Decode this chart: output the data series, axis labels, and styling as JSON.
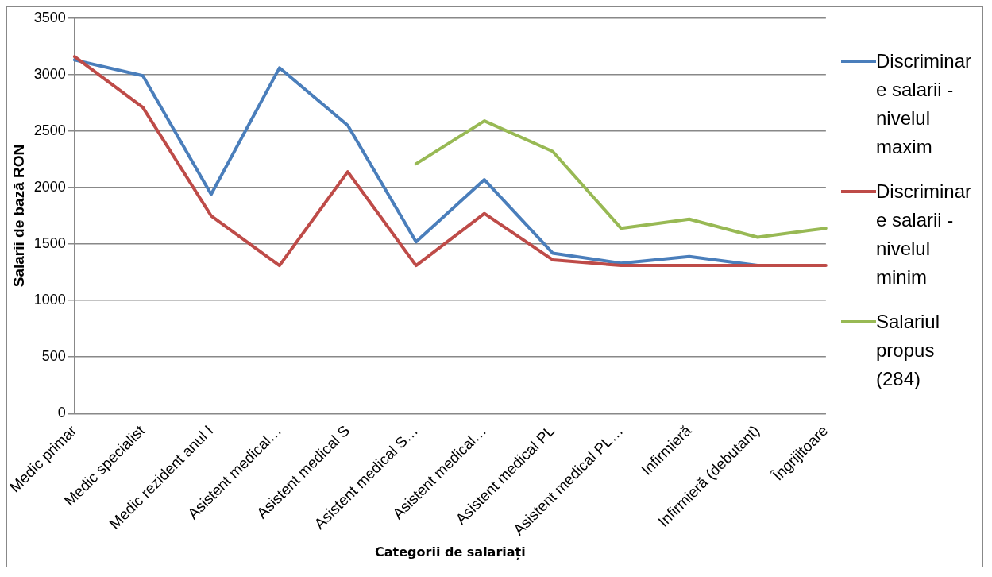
{
  "chart_data": {
    "type": "line",
    "xlabel": "Categorii de salariați",
    "ylabel": "Salarii de bază RON",
    "categories": [
      "Medic primar",
      "Medic specialist",
      "Medic rezident anul I",
      "Asistent medical…",
      "Asistent medical S",
      "Asistent medical S…",
      "Asistent medical…",
      "Asistent medical PL",
      "Asistent medical PL…",
      "Infirmieră",
      "Infirmieră (debutant)",
      "Îngrijitoare"
    ],
    "series": [
      {
        "name": "Discriminare salarii - nivelul maxim",
        "color": "#4a7ebb",
        "values": [
          3130,
          2990,
          1940,
          3060,
          2550,
          1520,
          2070,
          1420,
          1330,
          1390,
          1310,
          null
        ]
      },
      {
        "name": "Discriminare salarii - nivelul minim",
        "color": "#be4b48",
        "values": [
          3160,
          2710,
          1750,
          1310,
          2140,
          1310,
          1770,
          1360,
          1310,
          1310,
          1310,
          1310
        ]
      },
      {
        "name": "Salariul propus (284)",
        "color": "#98b954",
        "values": [
          null,
          null,
          null,
          null,
          null,
          2210,
          2590,
          2320,
          1640,
          1720,
          1560,
          1640
        ]
      }
    ],
    "ylim": [
      0,
      3500
    ],
    "yticks": [
      0,
      500,
      1000,
      1500,
      2000,
      2500,
      3000,
      3500
    ],
    "grid": "y",
    "legend": "right",
    "marker": "none",
    "line_style": "solid"
  }
}
